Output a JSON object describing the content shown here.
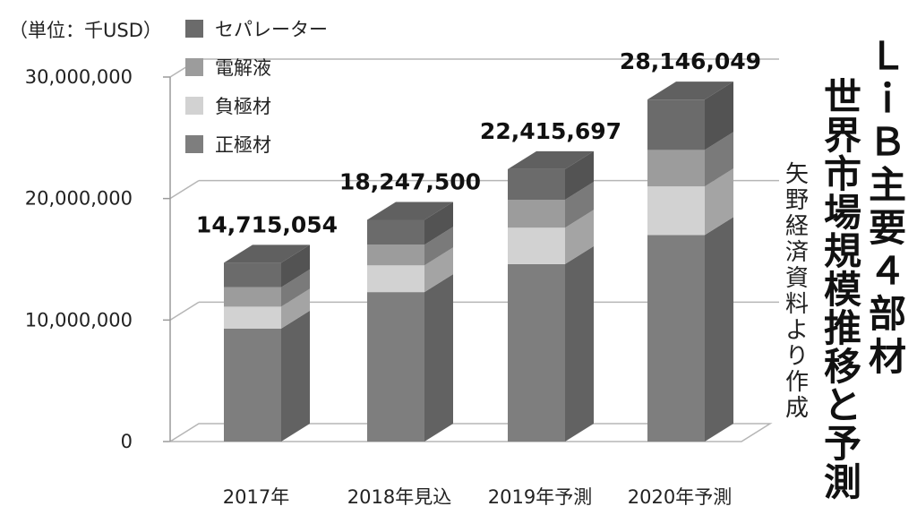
{
  "unit_label": "（単位：千USD）",
  "title_lines": [
    "ＬｉＢ主要４部材",
    "世界市場規模推移と予測"
  ],
  "source": "矢野経済資料より作成",
  "colors": {
    "separator": "#6b6b6b",
    "electrolyte": "#9c9c9c",
    "anode": "#d2d2d2",
    "cathode": "#7e7e7e"
  },
  "chart_data": {
    "type": "bar",
    "stacked": true,
    "three_d": true,
    "categories": [
      "2017年",
      "2018年見込",
      "2019年予測",
      "2020年予測"
    ],
    "series": [
      {
        "name": "正極材",
        "values": [
          9300000,
          12300000,
          14600000,
          17000000
        ]
      },
      {
        "name": "負極材",
        "values": [
          1800000,
          2200000,
          3000000,
          4000000
        ]
      },
      {
        "name": "電解液",
        "values": [
          1600000,
          1700000,
          2300000,
          3000000
        ]
      },
      {
        "name": "セパレーター",
        "values": [
          2015054,
          2047500,
          2515697,
          4146049
        ]
      }
    ],
    "totals": [
      14715054,
      18247500,
      22415697,
      28146049
    ],
    "total_labels": [
      "14,715,054",
      "18,247,500",
      "22,415,697",
      "28,146,049"
    ],
    "legend_order": [
      "セパレーター",
      "電解液",
      "負極材",
      "正極材"
    ],
    "legend_position": "top-left",
    "y_ticks": [
      {
        "value": 0,
        "label": "0"
      },
      {
        "value": 10000000,
        "label": "10,000,000"
      },
      {
        "value": 20000000,
        "label": "20,000,000"
      },
      {
        "value": 30000000,
        "label": "30,000,000"
      }
    ],
    "ylim": [
      0,
      30000000
    ],
    "grid": true
  }
}
